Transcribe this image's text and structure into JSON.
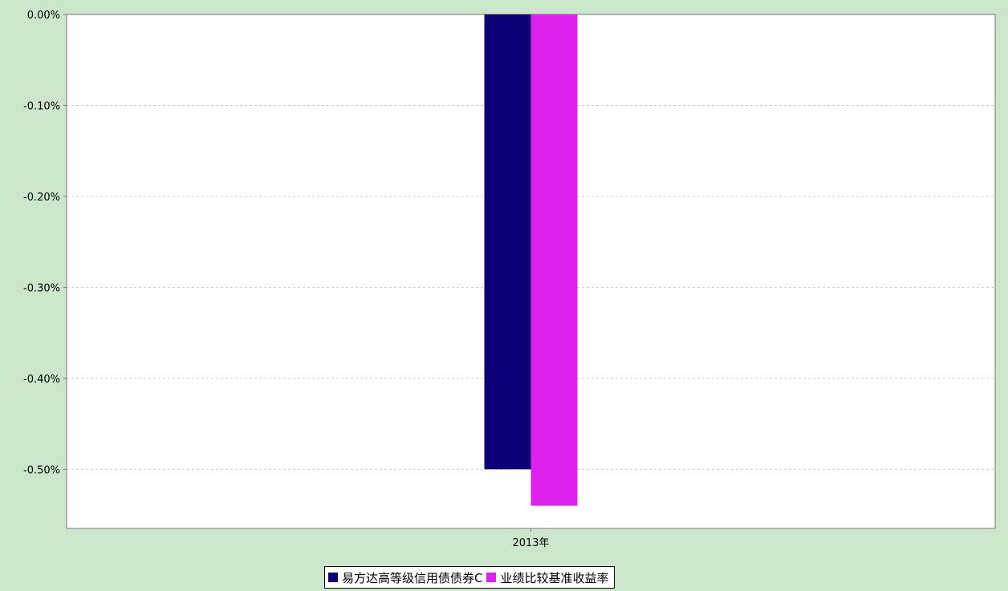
{
  "chart_data": {
    "type": "bar",
    "categories": [
      "2013年"
    ],
    "series": [
      {
        "name": "易方达高等级信用债债券C",
        "values": [
          -0.5
        ],
        "color": "#0d0077"
      },
      {
        "name": "业绩比较基准收益率",
        "values": [
          -0.54
        ],
        "color": "#dd22ee"
      }
    ],
    "ylim": [
      -0.565,
      0
    ],
    "yticks": [
      {
        "value": 0,
        "label": "0.00%"
      },
      {
        "value": -0.1,
        "label": "-0.10%"
      },
      {
        "value": -0.2,
        "label": "-0.20%"
      },
      {
        "value": -0.3,
        "label": "-0.30%"
      },
      {
        "value": -0.4,
        "label": "-0.40%"
      },
      {
        "value": -0.5,
        "label": "-0.50%"
      }
    ],
    "grid": true,
    "legend_position": "bottom",
    "background_color": "#cce6cc",
    "plot_background_color": "#ffffff"
  }
}
